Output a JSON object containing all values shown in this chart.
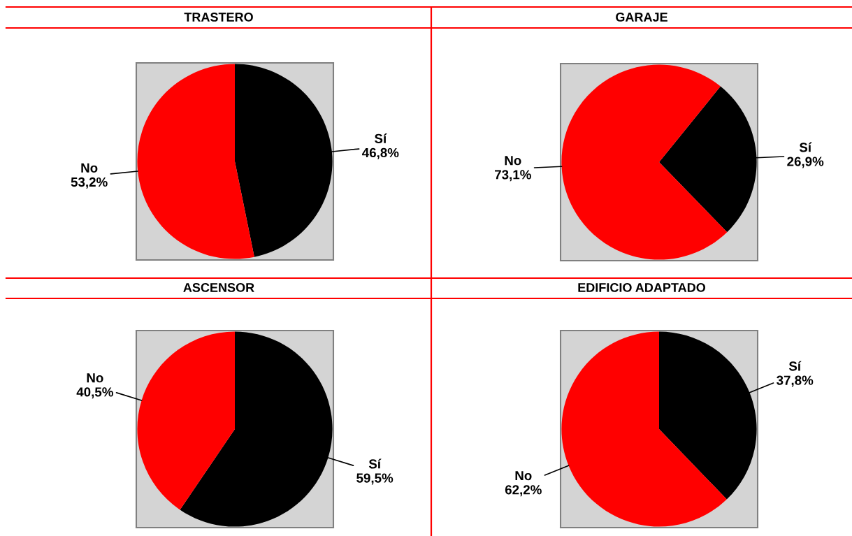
{
  "chart_data": [
    {
      "type": "pie",
      "title": "TRASTERO",
      "categories": [
        "Sí",
        "No"
      ],
      "values": [
        46.8,
        53.2
      ],
      "value_labels": [
        "46,8%",
        "53,2%"
      ],
      "colors": [
        "#000000",
        "#ff0000"
      ]
    },
    {
      "type": "pie",
      "title": "GARAJE",
      "categories": [
        "Sí",
        "No"
      ],
      "values": [
        26.9,
        73.1
      ],
      "value_labels": [
        "26,9%",
        "73,1%"
      ],
      "colors": [
        "#000000",
        "#ff0000"
      ]
    },
    {
      "type": "pie",
      "title": "ASCENSOR",
      "categories": [
        "Sí",
        "No"
      ],
      "values": [
        59.5,
        40.5
      ],
      "value_labels": [
        "59,5%",
        "40,5%"
      ],
      "colors": [
        "#000000",
        "#ff0000"
      ]
    },
    {
      "type": "pie",
      "title": "EDIFICIO ADAPTADO",
      "categories": [
        "Sí",
        "No"
      ],
      "values": [
        37.8,
        62.2
      ],
      "value_labels": [
        "37,8%",
        "62,2%"
      ],
      "colors": [
        "#000000",
        "#ff0000"
      ]
    }
  ]
}
